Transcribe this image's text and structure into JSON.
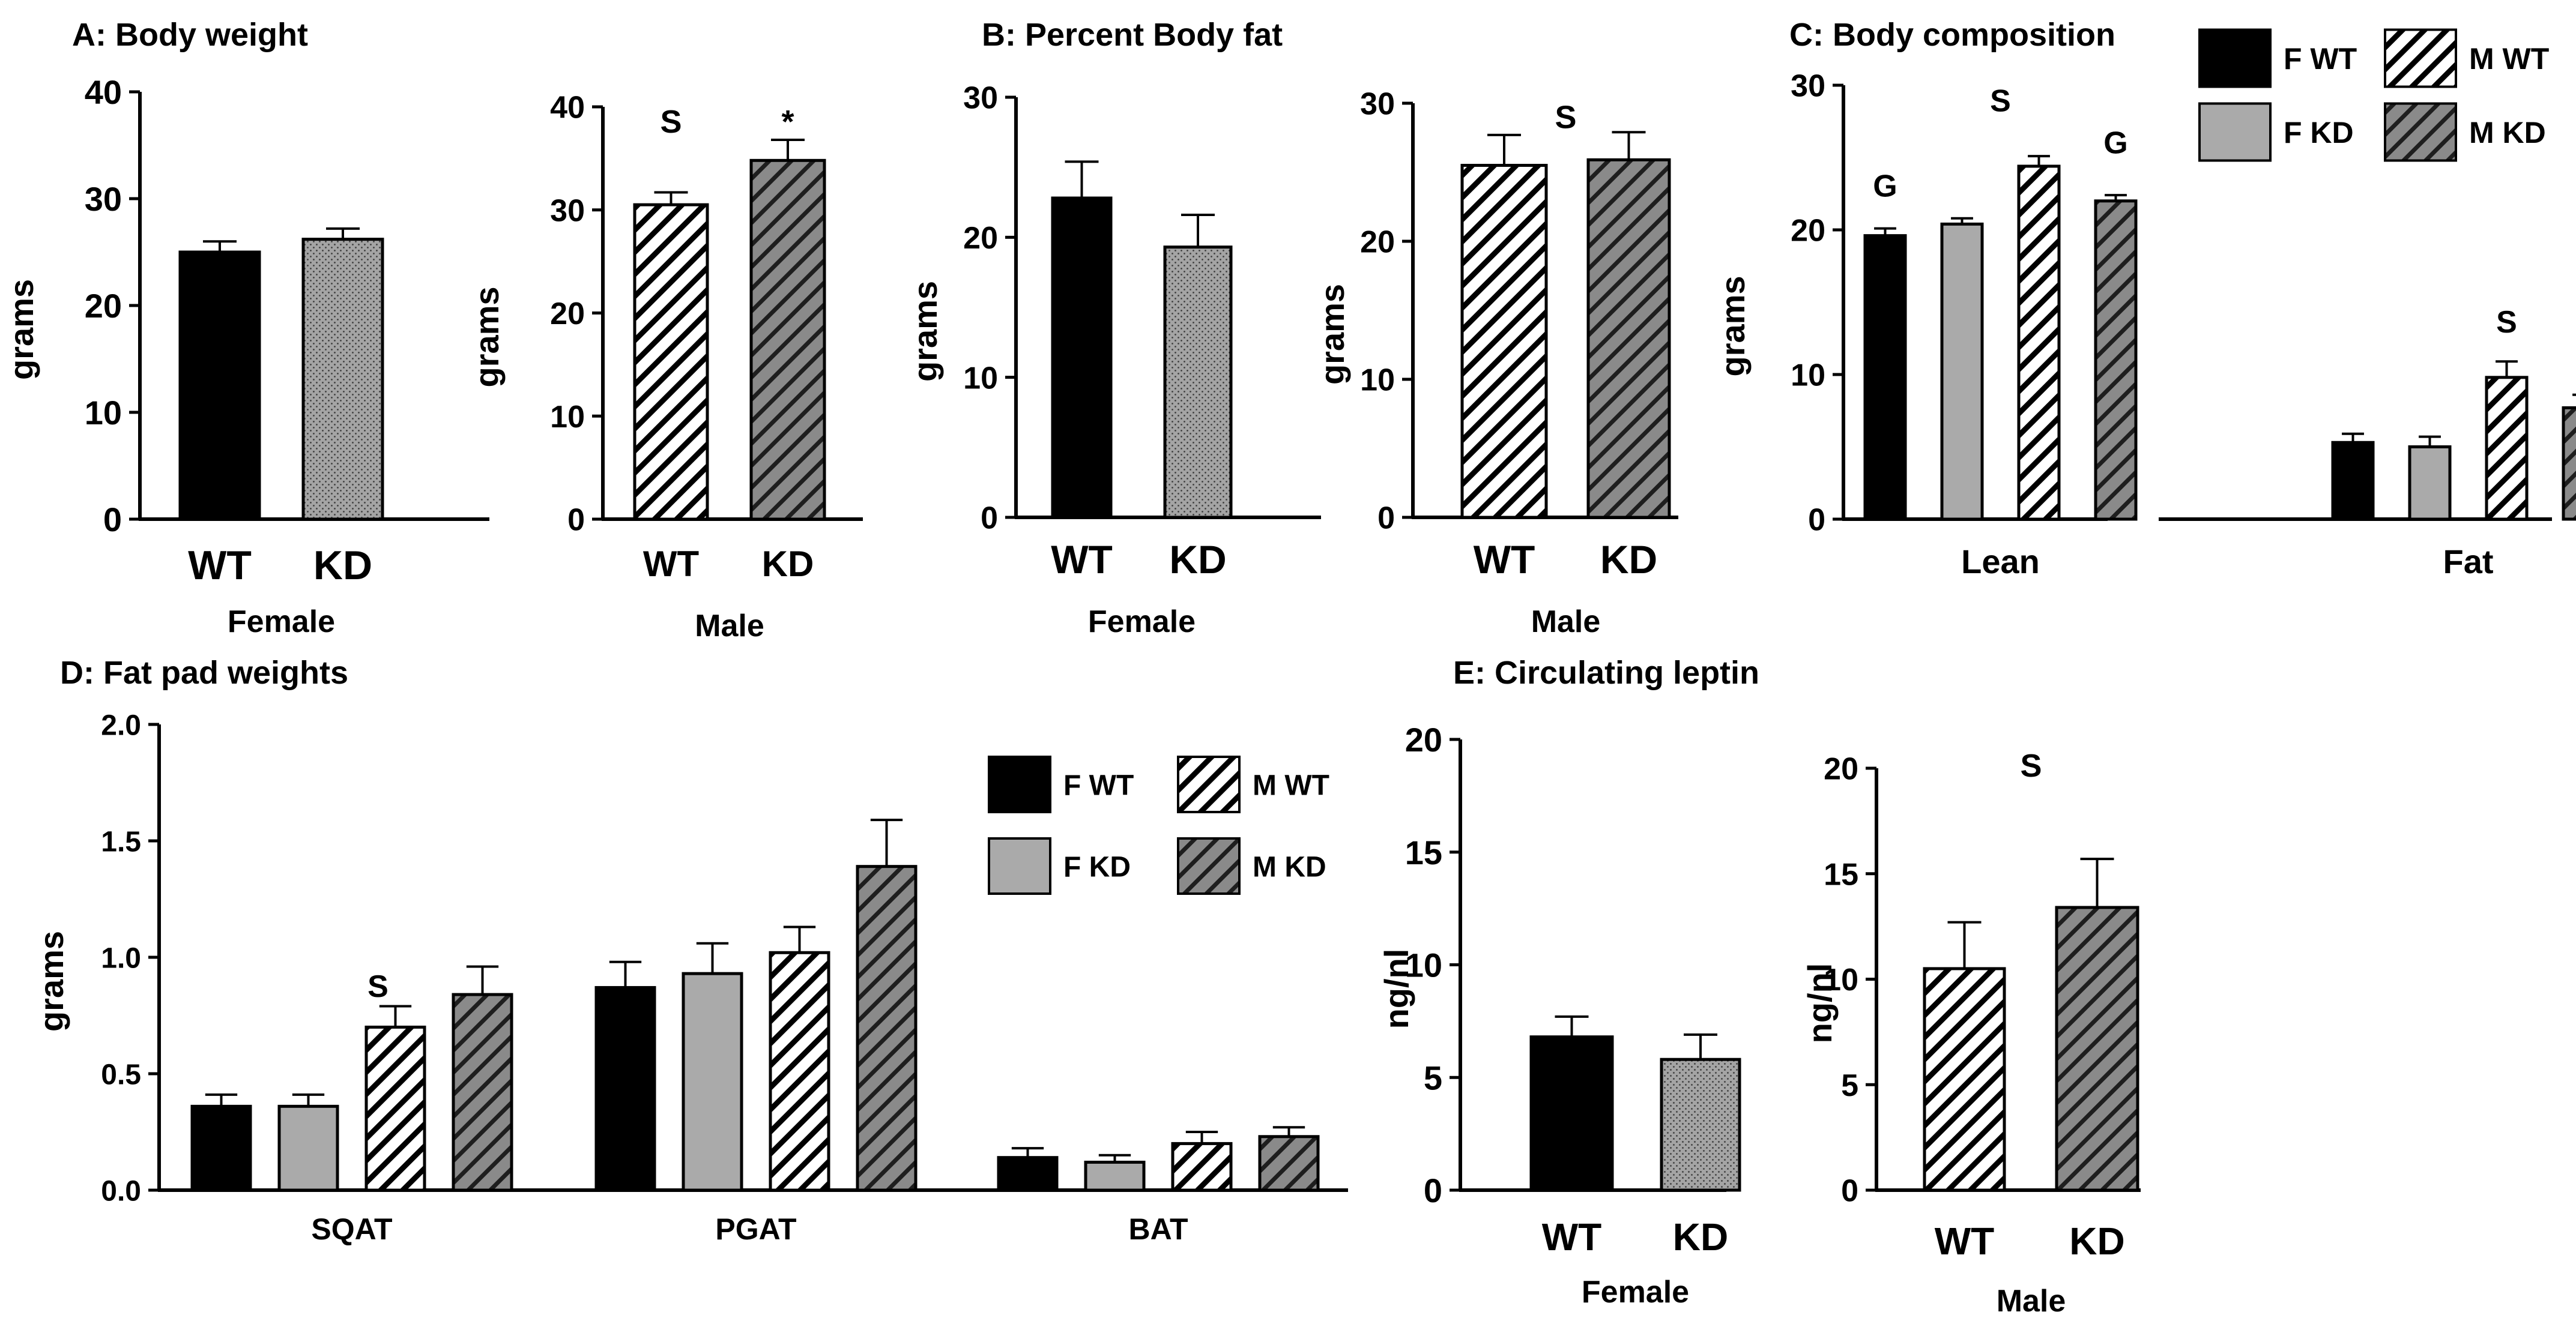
{
  "colors": {
    "black": "#000000",
    "gray": "#aaaaaa",
    "dark": "#8a8a8a",
    "white": "#ffffff"
  },
  "chart_data": [
    {
      "id": "A1",
      "type": "bar",
      "title": "A: Body weight",
      "ylabel": "grams",
      "xlabel": "Female",
      "ylim": [
        0,
        40
      ],
      "yticks": [
        0,
        10,
        20,
        30,
        40
      ],
      "categories": [
        "WT",
        "KD"
      ],
      "series": [
        {
          "values": [
            25.0,
            26.2
          ],
          "errors": [
            1.0,
            1.0
          ],
          "patterns": [
            "black",
            "dot"
          ]
        }
      ],
      "annotations": []
    },
    {
      "id": "A2",
      "type": "bar",
      "title": "",
      "ylabel": "grams",
      "xlabel": "Male",
      "ylim": [
        0,
        40
      ],
      "yticks": [
        0,
        10,
        20,
        30,
        40
      ],
      "categories": [
        "WT",
        "KD"
      ],
      "series": [
        {
          "values": [
            30.5,
            34.8
          ],
          "errors": [
            1.2,
            2.0
          ],
          "patterns": [
            "stripe",
            "darkstripe"
          ]
        }
      ],
      "annotations": [
        {
          "text": "S",
          "x": 0,
          "y": 37.5
        },
        {
          "text": "*",
          "x": 1,
          "y": 37.5
        }
      ]
    },
    {
      "id": "B1",
      "type": "bar",
      "title": "B: Percent Body fat",
      "ylabel": "grams",
      "xlabel": "Female",
      "ylim": [
        0,
        30
      ],
      "yticks": [
        0,
        10,
        20,
        30
      ],
      "categories": [
        "WT",
        "KD"
      ],
      "series": [
        {
          "values": [
            22.8,
            19.3
          ],
          "errors": [
            2.6,
            2.3
          ],
          "patterns": [
            "black",
            "dot"
          ]
        }
      ],
      "annotations": []
    },
    {
      "id": "B2",
      "type": "bar",
      "title": "",
      "ylabel": "grams",
      "xlabel": "Male",
      "ylim": [
        0,
        30
      ],
      "yticks": [
        0,
        10,
        20,
        30
      ],
      "categories": [
        "WT",
        "KD"
      ],
      "series": [
        {
          "values": [
            25.5,
            25.9
          ],
          "errors": [
            2.2,
            2.0
          ],
          "patterns": [
            "stripe",
            "darkstripe"
          ]
        }
      ],
      "annotations": [
        {
          "text": "S",
          "x": 0.5,
          "y": 28.2
        }
      ]
    },
    {
      "id": "C",
      "type": "bar",
      "title": "C: Body composition",
      "ylabel": "grams",
      "xlabel": "",
      "ylim": [
        0,
        30
      ],
      "yticks": [
        0,
        10,
        20,
        30
      ],
      "categories": [
        "Lean",
        "Fat"
      ],
      "legend_placement": "top-right",
      "series": [
        {
          "name": "F WT",
          "pattern": "black",
          "values": [
            19.6,
            5.3
          ],
          "errors": [
            0.5,
            0.6
          ]
        },
        {
          "name": "F KD",
          "pattern": "gray",
          "values": [
            20.4,
            5.0
          ],
          "errors": [
            0.4,
            0.7
          ]
        },
        {
          "name": "M WT",
          "pattern": "stripe",
          "values": [
            24.4,
            9.8
          ],
          "errors": [
            0.7,
            1.1
          ]
        },
        {
          "name": "M KD",
          "pattern": "darkstripe",
          "values": [
            22.0,
            7.7
          ],
          "errors": [
            0.4,
            0.9
          ]
        }
      ],
      "annotations": [
        {
          "text": "G",
          "cat": 0,
          "bar": 0,
          "y": 22.3
        },
        {
          "text": "S",
          "cat": 0,
          "bar": 1.5,
          "y": 28.2
        },
        {
          "text": "G",
          "cat": 0,
          "bar": 3,
          "y": 25.3
        },
        {
          "text": "S",
          "cat": 1,
          "bar": 2,
          "y": 12.9
        }
      ]
    },
    {
      "id": "D",
      "type": "bar",
      "title": "D: Fat pad weights",
      "ylabel": "grams",
      "xlabel": "",
      "ylim": [
        0,
        2.0
      ],
      "yticks": [
        "0.0",
        "0.5",
        "1.0",
        "1.5",
        "2.0"
      ],
      "categories": [
        "SQAT",
        "PGAT",
        "BAT"
      ],
      "legend_placement": "top-right",
      "series": [
        {
          "name": "F WT",
          "pattern": "black",
          "values": [
            0.36,
            0.87,
            0.14
          ],
          "errors": [
            0.05,
            0.11,
            0.04
          ]
        },
        {
          "name": "F KD",
          "pattern": "gray",
          "values": [
            0.36,
            0.93,
            0.12
          ],
          "errors": [
            0.05,
            0.13,
            0.03
          ]
        },
        {
          "name": "M WT",
          "pattern": "stripe",
          "values": [
            0.7,
            1.02,
            0.2
          ],
          "errors": [
            0.09,
            0.11,
            0.05
          ]
        },
        {
          "name": "M KD",
          "pattern": "darkstripe",
          "values": [
            0.84,
            1.39,
            0.23
          ],
          "errors": [
            0.12,
            0.2,
            0.04
          ]
        }
      ],
      "annotations": [
        {
          "text": "S",
          "cat": 0,
          "bar": 1.8,
          "y": 0.83
        }
      ]
    },
    {
      "id": "E1",
      "type": "bar",
      "title": "E: Circulating leptin",
      "ylabel": "ng/nl",
      "xlabel": "Female",
      "ylim": [
        0,
        20
      ],
      "yticks": [
        0,
        5,
        10,
        15,
        20
      ],
      "categories": [
        "WT",
        "KD"
      ],
      "series": [
        {
          "values": [
            6.8,
            5.8
          ],
          "errors": [
            0.9,
            1.1
          ],
          "patterns": [
            "black",
            "dot"
          ]
        }
      ],
      "annotations": []
    },
    {
      "id": "E2",
      "type": "bar",
      "title": "",
      "ylabel": "ng/nl",
      "xlabel": "Male",
      "ylim": [
        0,
        20
      ],
      "yticks": [
        0,
        5,
        10,
        15,
        20
      ],
      "categories": [
        "WT",
        "KD"
      ],
      "series": [
        {
          "values": [
            10.5,
            13.4
          ],
          "errors": [
            2.2,
            2.3
          ],
          "patterns": [
            "stripe",
            "darkstripe"
          ]
        }
      ],
      "annotations": [
        {
          "text": "S",
          "x": 0.5,
          "y": 19.6
        }
      ]
    }
  ]
}
